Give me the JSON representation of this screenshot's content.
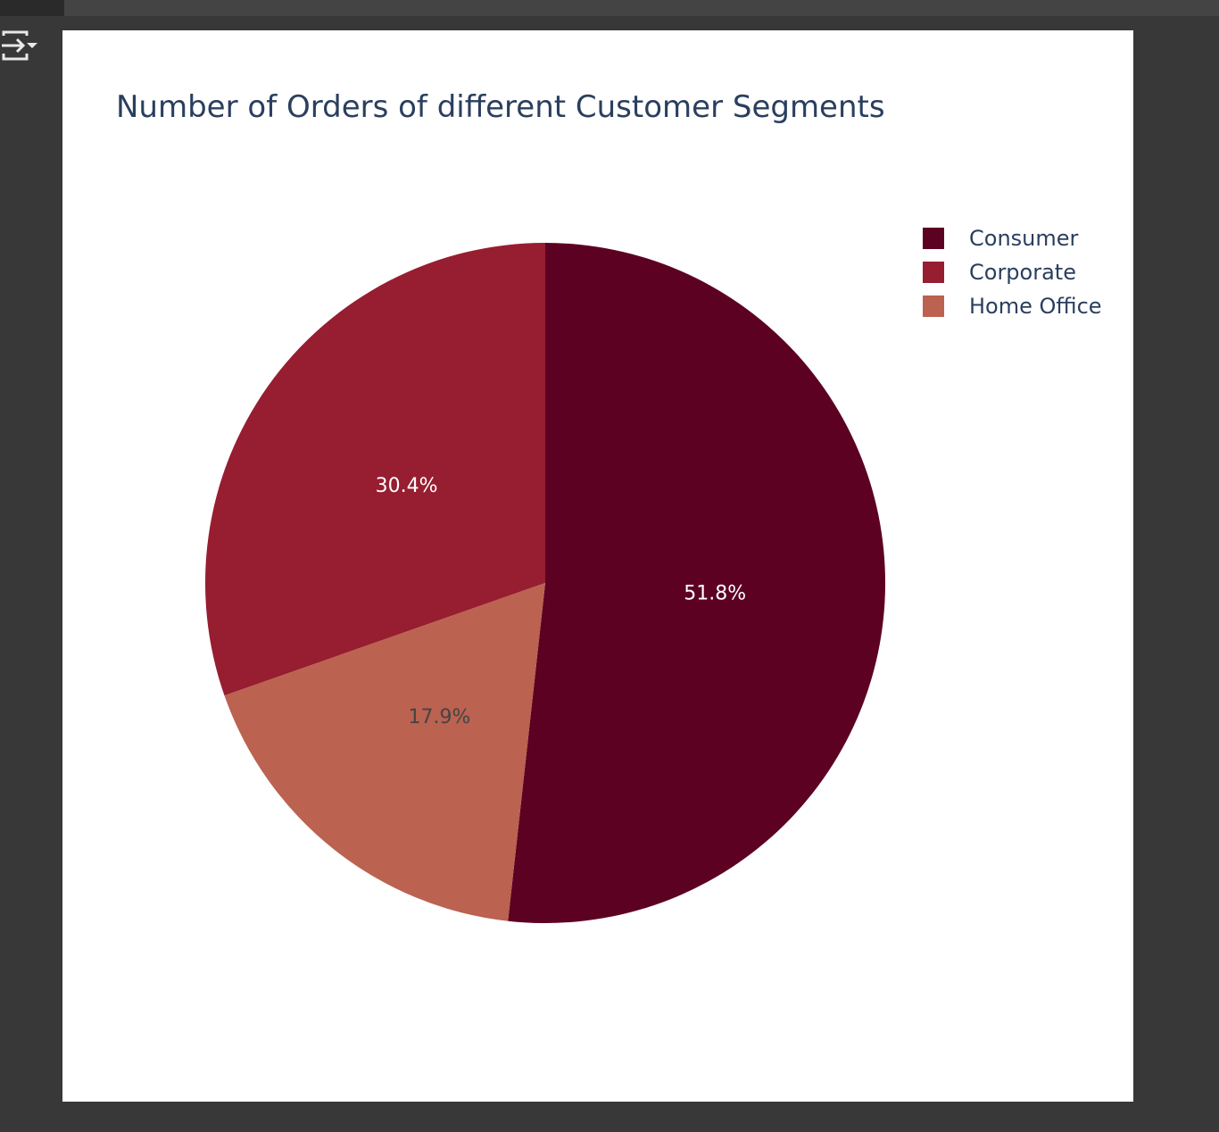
{
  "app": {
    "output_icon": "output-toggle-icon"
  },
  "chart_data": {
    "type": "pie",
    "title": "Number of Orders of different Customer Segments",
    "categories": [
      "Consumer",
      "Corporate",
      "Home Office"
    ],
    "values": [
      51.8,
      30.4,
      17.9
    ],
    "labels": [
      "51.8%",
      "30.4%",
      "17.9%"
    ],
    "colors": [
      "#5c0122",
      "#971d31",
      "#bb6250"
    ],
    "label_colors": [
      "#ffffff",
      "#ffffff",
      "#444444"
    ],
    "legend_position": "top-right",
    "direction": "clockwise",
    "start": "12 o'clock"
  }
}
